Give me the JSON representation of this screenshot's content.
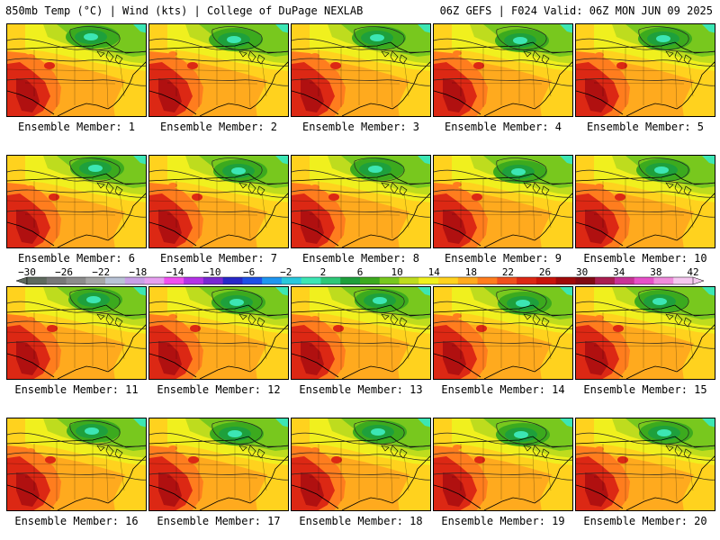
{
  "header": {
    "left": "850mb Temp (°C) | Wind (kts) | College of DuPage NEXLAB",
    "right": "06Z GEFS | F024 Valid: 06Z MON JUN 09 2025"
  },
  "panels": [
    "Ensemble Member: 1",
    "Ensemble Member: 2",
    "Ensemble Member: 3",
    "Ensemble Member: 4",
    "Ensemble Member: 5",
    "Ensemble Member: 6",
    "Ensemble Member: 7",
    "Ensemble Member: 8",
    "Ensemble Member: 9",
    "Ensemble Member: 10",
    "Ensemble Member: 11",
    "Ensemble Member: 12",
    "Ensemble Member: 13",
    "Ensemble Member: 14",
    "Ensemble Member: 15",
    "Ensemble Member: 16",
    "Ensemble Member: 17",
    "Ensemble Member: 18",
    "Ensemble Member: 19",
    "Ensemble Member: 20"
  ],
  "colorbar": {
    "ticks": [
      "-30",
      "-26",
      "-22",
      "-18",
      "-14",
      "-10",
      "-6",
      "-2",
      "2",
      "6",
      "10",
      "14",
      "18",
      "22",
      "26",
      "30",
      "34",
      "38",
      "42"
    ],
    "colors": [
      "#5f6a5f",
      "#787878",
      "#8c8c8c",
      "#a6a6a6",
      "#b9c3d6",
      "#c8a0e6",
      "#e6a0f0",
      "#f050f0",
      "#b432e6",
      "#7828d2",
      "#2828c8",
      "#1e50e6",
      "#1e96f0",
      "#28c8dc",
      "#3ce6b4",
      "#2dc878",
      "#1ea03c",
      "#3caa1e",
      "#78c81e",
      "#bedc1e",
      "#f0f01e",
      "#ffd21e",
      "#ffaa1e",
      "#ff7d1e",
      "#f0501e",
      "#dc2814",
      "#c8140a",
      "#a00a0a",
      "#820a14",
      "#aa1e50",
      "#c83296",
      "#e650c8",
      "#f08cdc",
      "#f5c8f0"
    ]
  },
  "palette": {
    "teal": "#3ce6b4",
    "green_dark": "#1ea03c",
    "green": "#3caa1e",
    "green_light": "#78c81e",
    "lime": "#bedc1e",
    "yellow": "#f0f01e",
    "gold": "#ffd21e",
    "orange": "#ffaa1e",
    "orange_dark": "#ff7d1e",
    "red": "#dc2814",
    "red_dark": "#b01010"
  }
}
